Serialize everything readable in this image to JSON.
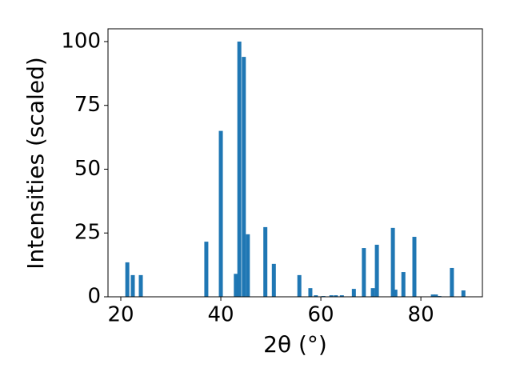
{
  "chart_data": {
    "type": "bar",
    "xlabel": "2θ (°)",
    "ylabel": "Intensities (scaled)",
    "color": "#1f77b4",
    "x": [
      21.3,
      22.4,
      24.0,
      37.1,
      40.0,
      43.0,
      43.7,
      44.6,
      45.4,
      48.9,
      50.6,
      55.7,
      57.9,
      59.0,
      60.5,
      62.1,
      63.0,
      64.2,
      66.6,
      68.6,
      70.4,
      71.2,
      74.4,
      74.9,
      76.5,
      78.7,
      82.4,
      83.0,
      83.7,
      86.2,
      88.5
    ],
    "values": [
      13.5,
      8.5,
      8.5,
      21.6,
      65,
      9,
      100,
      94,
      24.5,
      27.3,
      12.9,
      8.5,
      3.4,
      0.6,
      0.3,
      0.6,
      0.6,
      0.6,
      3.1,
      19.1,
      3.4,
      20.4,
      27,
      2.8,
      9.7,
      23.5,
      0.9,
      0.9,
      0.3,
      11.3,
      2.5
    ],
    "xlim": [
      17.44,
      92.3
    ],
    "ylim": [
      0,
      105
    ],
    "xticks": [
      20,
      40,
      60,
      80
    ],
    "yticks": [
      0,
      25,
      50,
      75,
      100
    ],
    "grid": false
  }
}
